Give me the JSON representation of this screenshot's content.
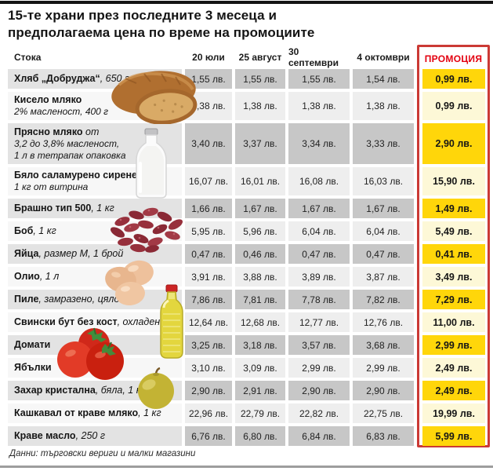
{
  "title": {
    "line1": "15-те храни през последните 3 месеца и",
    "line2": "предполагаема цена по време на промоциите"
  },
  "colors": {
    "promo_gold": "#ffd60a",
    "promo_pale": "#fdf8d7",
    "promo_border_red": "#cb3a35",
    "promo_header_red": "#e3000f",
    "row_dark_price": "#c7c7c7",
    "row_light_price": "#eeeeee",
    "row_dark_product": "#e3e3e3",
    "row_light_product": "#f7f7f7"
  },
  "images": [
    "bread-photo",
    "milk-bottle-photo",
    "beans-photo",
    "eggs-photo",
    "oil-bottle-photo",
    "tomatoes-photo",
    "apple-photo"
  ],
  "chart_data": {
    "type": "table",
    "title": "15-те храни през последните 3 месеца и предполагаема цена по време на промоциите",
    "columns": [
      "Стока",
      "20 юли",
      "25 август",
      "30 септември",
      "4 октомври",
      "ПРОМОЦИЯ"
    ],
    "unit": "лв.",
    "source": "Данни: търговски вериги и малки магазини",
    "rows": [
      {
        "product": "Хляб „Добруджа“",
        "spec": ", 650 г",
        "sub": [],
        "prices": [
          1.55,
          1.55,
          1.55,
          1.54
        ],
        "promo": 0.99
      },
      {
        "product": "Кисело мляко",
        "spec": "",
        "sub": [
          "2% масленост, 400 г"
        ],
        "prices": [
          1.38,
          1.38,
          1.38,
          1.38
        ],
        "promo": 0.99
      },
      {
        "product": "Прясно мляко",
        "spec": " от",
        "sub": [
          "3,2 до 3,8% масленост,",
          "1 л в тетрапак опаковка"
        ],
        "prices": [
          3.4,
          3.37,
          3.34,
          3.33
        ],
        "promo": 2.9
      },
      {
        "product": "Бяло саламурено сирене",
        "spec": ",",
        "sub": [
          "1 кг от витрина"
        ],
        "prices": [
          16.07,
          16.01,
          16.08,
          16.03
        ],
        "promo": 15.9
      },
      {
        "product": "Брашно тип 500",
        "spec": ", 1 кг",
        "sub": [],
        "prices": [
          1.66,
          1.67,
          1.67,
          1.67
        ],
        "promo": 1.49
      },
      {
        "product": "Боб",
        "spec": ", 1 кг",
        "sub": [],
        "prices": [
          5.95,
          5.96,
          6.04,
          6.04
        ],
        "promo": 5.49
      },
      {
        "product": "Яйца",
        "spec": ", размер М, 1 брой",
        "sub": [],
        "prices": [
          0.47,
          0.46,
          0.47,
          0.47
        ],
        "promo": 0.41
      },
      {
        "product": "Олио",
        "spec": ", 1 л",
        "sub": [],
        "prices": [
          3.91,
          3.88,
          3.89,
          3.87
        ],
        "promo": 3.49
      },
      {
        "product": "Пиле",
        "spec": ", замразено, цяло",
        "sub": [],
        "prices": [
          7.86,
          7.81,
          7.78,
          7.82
        ],
        "promo": 7.29
      },
      {
        "product": "Свински бут без кост",
        "spec": ", охладен",
        "sub": [],
        "prices": [
          12.64,
          12.68,
          12.77,
          12.76
        ],
        "promo": 11.0
      },
      {
        "product": "Домати",
        "spec": "",
        "sub": [],
        "prices": [
          3.25,
          3.18,
          3.57,
          3.68
        ],
        "promo": 2.99
      },
      {
        "product": "Ябълки",
        "spec": "",
        "sub": [],
        "prices": [
          3.1,
          3.09,
          2.99,
          2.99
        ],
        "promo": 2.49
      },
      {
        "product": "Захар кристална",
        "spec": ", бяла, 1 кг",
        "sub": [],
        "prices": [
          2.9,
          2.91,
          2.9,
          2.9
        ],
        "promo": 2.49
      },
      {
        "product": "Кашкавал от краве мляко",
        "spec": ", 1 кг",
        "sub": [],
        "prices": [
          22.96,
          22.79,
          22.82,
          22.75
        ],
        "promo": 19.99
      },
      {
        "product": "Краве масло",
        "spec": ", 250 г",
        "sub": [],
        "prices": [
          6.76,
          6.8,
          6.84,
          6.83
        ],
        "promo": 5.99
      }
    ]
  }
}
